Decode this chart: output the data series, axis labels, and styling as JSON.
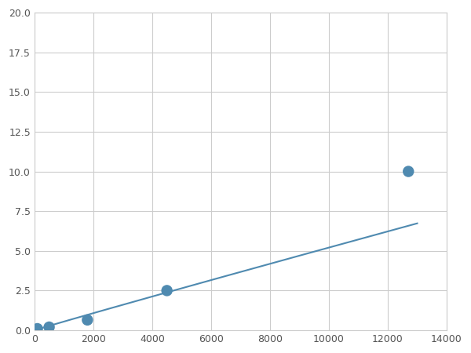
{
  "x_points": [
    100,
    500,
    600,
    1800,
    4500,
    12700
  ],
  "y_points": [
    0.1,
    0.2,
    0.25,
    0.65,
    2.5,
    10.0
  ],
  "line_color": "#4f8ab0",
  "marker_color": "#4f8ab0",
  "marker_size": 6,
  "xlim": [
    0,
    14000
  ],
  "ylim": [
    0,
    20.0
  ],
  "xticks": [
    0,
    2000,
    4000,
    6000,
    8000,
    10000,
    12000,
    14000
  ],
  "yticks": [
    0.0,
    2.5,
    5.0,
    7.5,
    10.0,
    12.5,
    15.0,
    17.5,
    20.0
  ],
  "grid_color": "#cccccc",
  "background_color": "#ffffff",
  "figsize": [
    6.0,
    4.5
  ],
  "dpi": 100
}
